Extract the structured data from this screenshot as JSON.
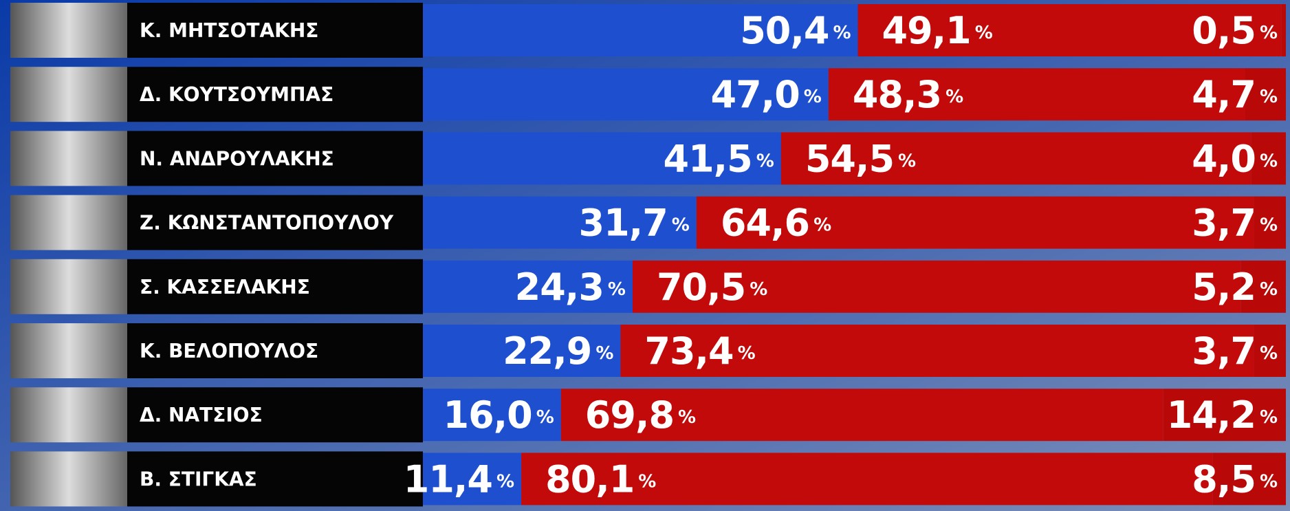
{
  "chart_data": {
    "type": "stacked-bar",
    "categories": [
      "Κ. ΜΗΤΣΟΤΑΚΗΣ",
      "Δ. ΚΟΥΤΣΟΥΜΠΑΣ",
      "Ν. ΑΝΔΡΟΥΛΑΚΗΣ",
      "Ζ. ΚΩΝΣΤΑΝΤΟΠΟΥΛΟΥ",
      "Σ. ΚΑΣΣΕΛΑΚΗΣ",
      "Κ. ΒΕΛΟΠΟΥΛΟΣ",
      "Δ. ΝΑΤΣΙΟΣ",
      "Β. ΣΤΙΓΚΑΣ"
    ],
    "unit": "%",
    "xlim": [
      0,
      100
    ],
    "series": [
      {
        "color": "#1d4fcf",
        "values": [
          50.4,
          47.0,
          41.5,
          31.7,
          24.3,
          22.9,
          16.0,
          11.4
        ],
        "value_labels": [
          "50,4",
          "47,0",
          "41,5",
          "31,7",
          "24,3",
          "22,9",
          "16,0",
          "11,4"
        ]
      },
      {
        "color": "#c20a0a",
        "values": [
          49.1,
          48.3,
          54.5,
          64.6,
          70.5,
          73.4,
          69.8,
          80.1
        ],
        "value_labels": [
          "49,1",
          "48,3",
          "54,5",
          "64,6",
          "70,5",
          "73,4",
          "69,8",
          "80,1"
        ]
      },
      {
        "color": "#b80808",
        "values": [
          0.5,
          4.7,
          4.0,
          3.7,
          5.2,
          3.7,
          14.2,
          8.5
        ],
        "value_labels": [
          "0,5",
          "4,7",
          "4,0",
          "3,7",
          "5,2",
          "3,7",
          "14,2",
          "8,5"
        ]
      }
    ]
  }
}
